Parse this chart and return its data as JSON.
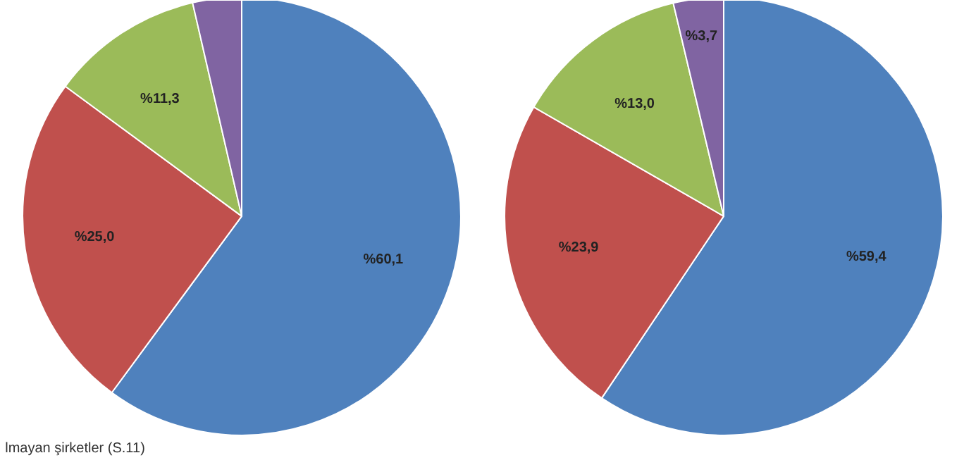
{
  "chart_data": [
    {
      "type": "pie",
      "categories": [
        null,
        null,
        null,
        null
      ],
      "values": [
        60.1,
        25.0,
        11.3,
        3.6
      ],
      "colors": [
        "#4f81bd",
        "#c0504d",
        "#9bbb59",
        "#8064a2"
      ],
      "value_labels": [
        "%60,1",
        "%25,0",
        "%11,3",
        null
      ],
      "annotations": [
        "lmayan şirketler (S.11)"
      ]
    },
    {
      "type": "pie",
      "categories": [
        null,
        null,
        null,
        null
      ],
      "values": [
        59.4,
        23.9,
        13.0,
        3.7
      ],
      "colors": [
        "#4f81bd",
        "#c0504d",
        "#9bbb59",
        "#8064a2"
      ],
      "value_labels": [
        "%59,4",
        "%23,9",
        "%13,0",
        "%3,7"
      ]
    }
  ]
}
